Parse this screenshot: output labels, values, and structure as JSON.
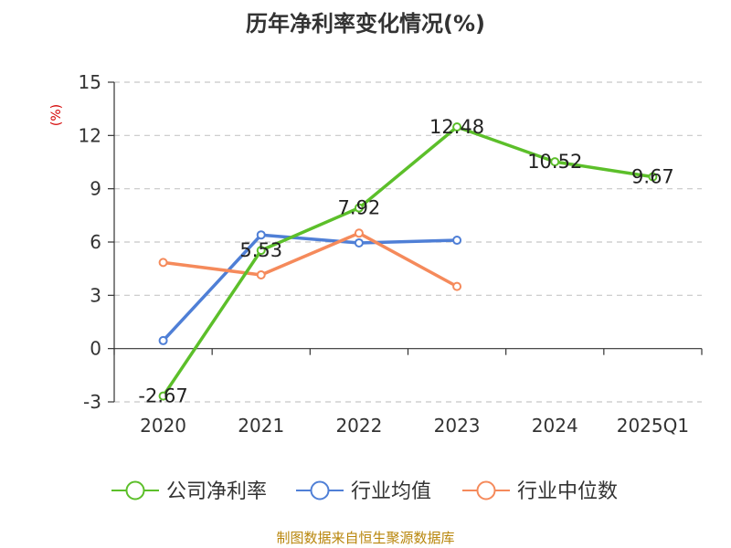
{
  "chart_data": {
    "type": "line",
    "title": "历年净利率变化情况(%)",
    "ylabel": "(%)",
    "xlabel": "",
    "categories": [
      "2020",
      "2021",
      "2022",
      "2023",
      "2024",
      "2025Q1"
    ],
    "ylim": [
      -3,
      15
    ],
    "yticks": [
      -3,
      0,
      3,
      6,
      9,
      12,
      15
    ],
    "grid": true,
    "legend_position": "bottom",
    "series": [
      {
        "name": "公司净利率",
        "color": "#5cbf2a",
        "values": [
          -2.67,
          5.53,
          7.92,
          12.48,
          10.52,
          9.67
        ],
        "labels": [
          "-2.67",
          "5.53",
          "7.92",
          "12.48",
          "10.52",
          "9.67"
        ]
      },
      {
        "name": "行业均值",
        "color": "#4f7fd6",
        "values": [
          0.45,
          6.4,
          5.95,
          6.1,
          null,
          null
        ]
      },
      {
        "name": "行业中位数",
        "color": "#f58a5b",
        "values": [
          4.85,
          4.15,
          6.5,
          3.5,
          null,
          null
        ]
      }
    ]
  },
  "footer": {
    "source": "制图数据来自恒生聚源数据库"
  }
}
